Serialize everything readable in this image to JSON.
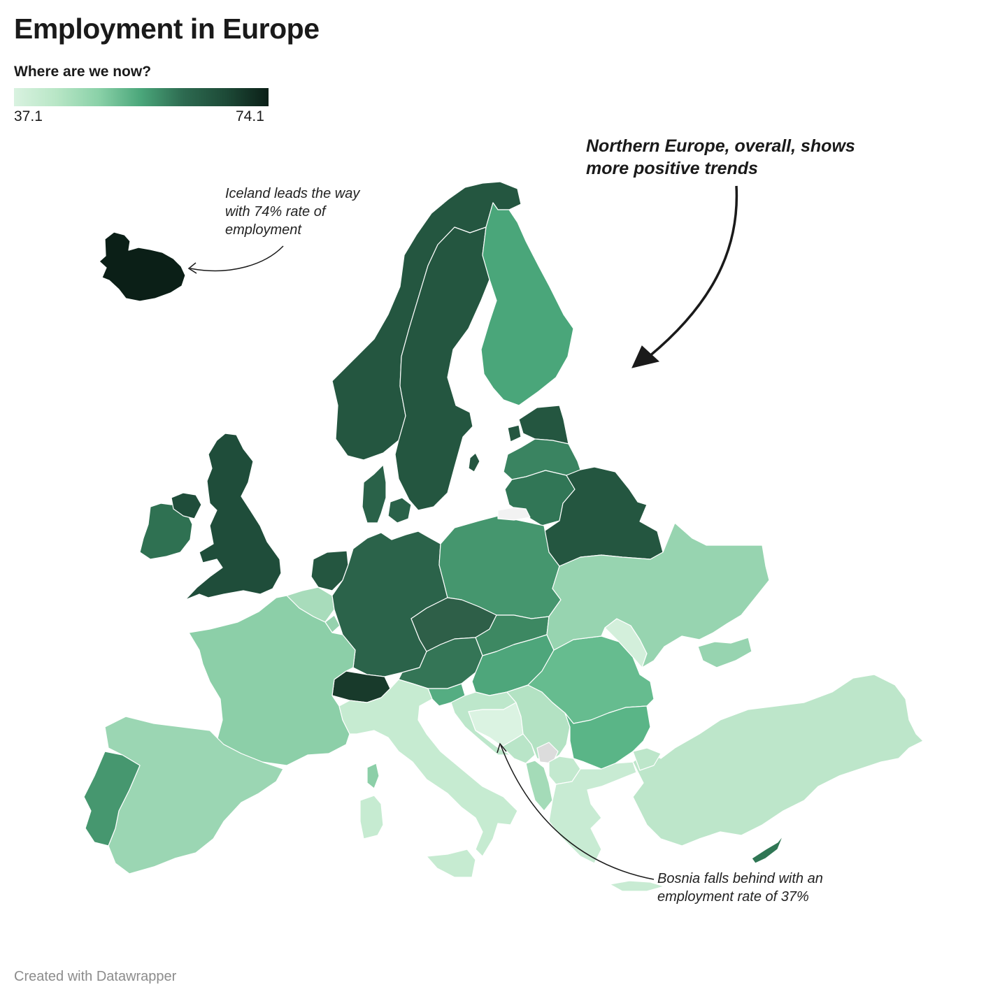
{
  "header": {
    "title": "Employment in Europe",
    "subtitle": "Where are we now?"
  },
  "legend": {
    "min_label": "37.1",
    "max_label": "74.1",
    "min_value": 37.1,
    "max_value": 74.1,
    "gradient_colors": [
      "#d9f2e0",
      "#b8e6c6",
      "#8ad1a8",
      "#4aa67a",
      "#2d6a50",
      "#1d4a37",
      "#0b1f17"
    ]
  },
  "annotations": {
    "iceland": "Iceland leads the way with 74% rate of employment",
    "north": "Northern Europe, overall, shows more positive trends",
    "bosnia": "Bosnia falls behind with an employment rate of 37%"
  },
  "footer": {
    "credit": "Created with Datawrapper"
  },
  "colors": {
    "no_data": "#dcdcdc",
    "annotation_arrow": "#1a1a1a"
  },
  "map_data": {
    "metric": "Employment rate (%)",
    "regions": [
      {
        "name": "Iceland",
        "value": 74.1,
        "color": "#0b1f17"
      },
      {
        "name": "Norway",
        "value": 68,
        "color": "#245640"
      },
      {
        "name": "Sweden",
        "value": 68,
        "color": "#245640"
      },
      {
        "name": "Finland",
        "value": 60,
        "color": "#4aa67a"
      },
      {
        "name": "Estonia",
        "value": 67,
        "color": "#245640"
      },
      {
        "name": "Latvia",
        "value": 64,
        "color": "#3a8461"
      },
      {
        "name": "Lithuania",
        "value": 65,
        "color": "#317656"
      },
      {
        "name": "Belarus",
        "value": 67,
        "color": "#245640"
      },
      {
        "name": "United Kingdom",
        "value": 67,
        "color": "#1f4d3a"
      },
      {
        "name": "Ireland",
        "value": 64,
        "color": "#2f7152"
      },
      {
        "name": "Denmark",
        "value": 66,
        "color": "#2a6249"
      },
      {
        "name": "Netherlands",
        "value": 67,
        "color": "#245640"
      },
      {
        "name": "Germany",
        "value": 66,
        "color": "#2b634a"
      },
      {
        "name": "Poland",
        "value": 60,
        "color": "#45966e"
      },
      {
        "name": "Czechia",
        "value": 66,
        "color": "#2e5f48"
      },
      {
        "name": "Austria",
        "value": 63,
        "color": "#347556"
      },
      {
        "name": "Switzerland",
        "value": 71,
        "color": "#183a2b"
      },
      {
        "name": "Belgium",
        "value": 52,
        "color": "#a8dcbb"
      },
      {
        "name": "Luxembourg",
        "value": 55,
        "color": "#96d2ae"
      },
      {
        "name": "France",
        "value": 53,
        "color": "#8ccfa8"
      },
      {
        "name": "Spain",
        "value": 50,
        "color": "#9bd6b3"
      },
      {
        "name": "Portugal",
        "value": 60,
        "color": "#46976f"
      },
      {
        "name": "Italy",
        "value": 45,
        "color": "#c6ebd1"
      },
      {
        "name": "Slovenia",
        "value": 58,
        "color": "#55ad82"
      },
      {
        "name": "Croatia",
        "value": 47,
        "color": "#bde7cb"
      },
      {
        "name": "Bosnia and Herzegovina",
        "value": 37.1,
        "color": "#dbf3e2"
      },
      {
        "name": "Serbia",
        "value": 49,
        "color": "#b3e2c3"
      },
      {
        "name": "Montenegro",
        "value": 48,
        "color": "#b9e5c8"
      },
      {
        "name": "Albania",
        "value": 52,
        "color": "#a4dbb8"
      },
      {
        "name": "North Macedonia",
        "value": 46,
        "color": "#c3e9cf"
      },
      {
        "name": "Kosovo",
        "value": null,
        "color": "#dcdcdc"
      },
      {
        "name": "Hungary",
        "value": 60,
        "color": "#4ea67b"
      },
      {
        "name": "Slovakia",
        "value": 62,
        "color": "#3d8862"
      },
      {
        "name": "Romania",
        "value": 57,
        "color": "#66bc8f"
      },
      {
        "name": "Bulgaria",
        "value": 58,
        "color": "#5ab587"
      },
      {
        "name": "Moldova",
        "value": 40,
        "color": "#d3efdb"
      },
      {
        "name": "Ukraine",
        "value": 51,
        "color": "#97d4b0"
      },
      {
        "name": "Greece",
        "value": 45,
        "color": "#c8ebd3"
      },
      {
        "name": "Turkey",
        "value": 46,
        "color": "#bde6ca"
      },
      {
        "name": "Cyprus",
        "value": 63,
        "color": "#2f7654"
      }
    ]
  }
}
